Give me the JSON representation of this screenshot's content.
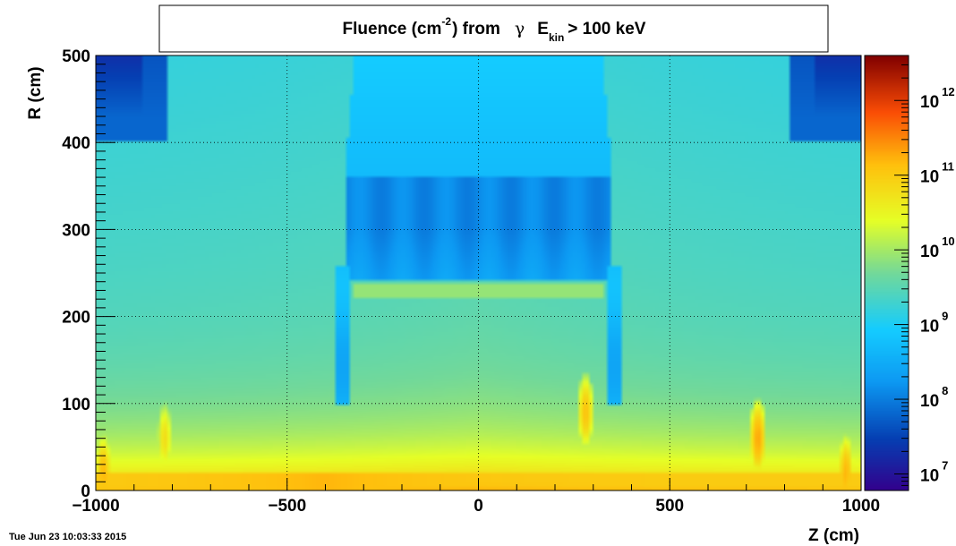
{
  "chart_data": {
    "type": "heatmap",
    "title": {
      "prefix": "Fluence (cm",
      "exponent": "-2",
      "middle": ") from",
      "symbol": "γ",
      "var": "E",
      "subscript": "kin",
      "suffix": "> 100 keV"
    },
    "xlabel": "Z (cm)",
    "ylabel": "R (cm)",
    "xlim": [
      -1000,
      1000
    ],
    "ylim": [
      0,
      500
    ],
    "x_ticks": [
      -1000,
      -500,
      0,
      500,
      1000
    ],
    "x_tick_labels": [
      "−1000",
      "−500",
      "0",
      "500",
      "1000"
    ],
    "y_ticks": [
      0,
      100,
      200,
      300,
      400,
      500
    ],
    "y_tick_labels": [
      "0",
      "100",
      "200",
      "300",
      "400",
      "500"
    ],
    "grid": true,
    "colorbar": {
      "scale": "log",
      "zlim": [
        6000000.0,
        4000000000000.0
      ],
      "base_label": "10",
      "decades": [
        7,
        8,
        9,
        10,
        11,
        12
      ]
    },
    "z_features": {
      "outer_region_log": 9.5,
      "upper_corner_boxes": {
        "z_ranges": [
          [
            -1000,
            -810
          ],
          [
            810,
            1000
          ]
        ],
        "r_range": [
          400,
          500
        ],
        "log": 7.8
      },
      "inner_detector_block": {
        "z_range": [
          -350,
          350
        ],
        "r_range": [
          240,
          360
        ],
        "log": 8.1
      },
      "central_dome": {
        "z_range": [
          -350,
          350
        ],
        "r_range": [
          360,
          500
        ],
        "log": 8.7
      },
      "side_walls": {
        "z_ranges": [
          [
            -370,
            -340
          ],
          [
            340,
            370
          ]
        ],
        "r_range": [
          100,
          260
        ],
        "log": 8.6
      },
      "horizontal_hot_band": {
        "z_range": [
          -330,
          330
        ],
        "r_center": 230,
        "log": 9.9
      },
      "near_axis_floor": {
        "r_range": [
          0,
          20
        ],
        "log": 11.0
      },
      "hotspots": [
        {
          "z": 280,
          "r": 90,
          "log": 11.1
        },
        {
          "z": 730,
          "r": 60,
          "log": 11.3
        },
        {
          "z": -980,
          "r": 20,
          "log": 11.2
        },
        {
          "z": 960,
          "r": 20,
          "log": 11.2
        },
        {
          "z": -820,
          "r": 60,
          "log": 10.8
        }
      ]
    }
  },
  "footer": {
    "timestamp": "Tue Jun 23 10:03:33 2015"
  }
}
